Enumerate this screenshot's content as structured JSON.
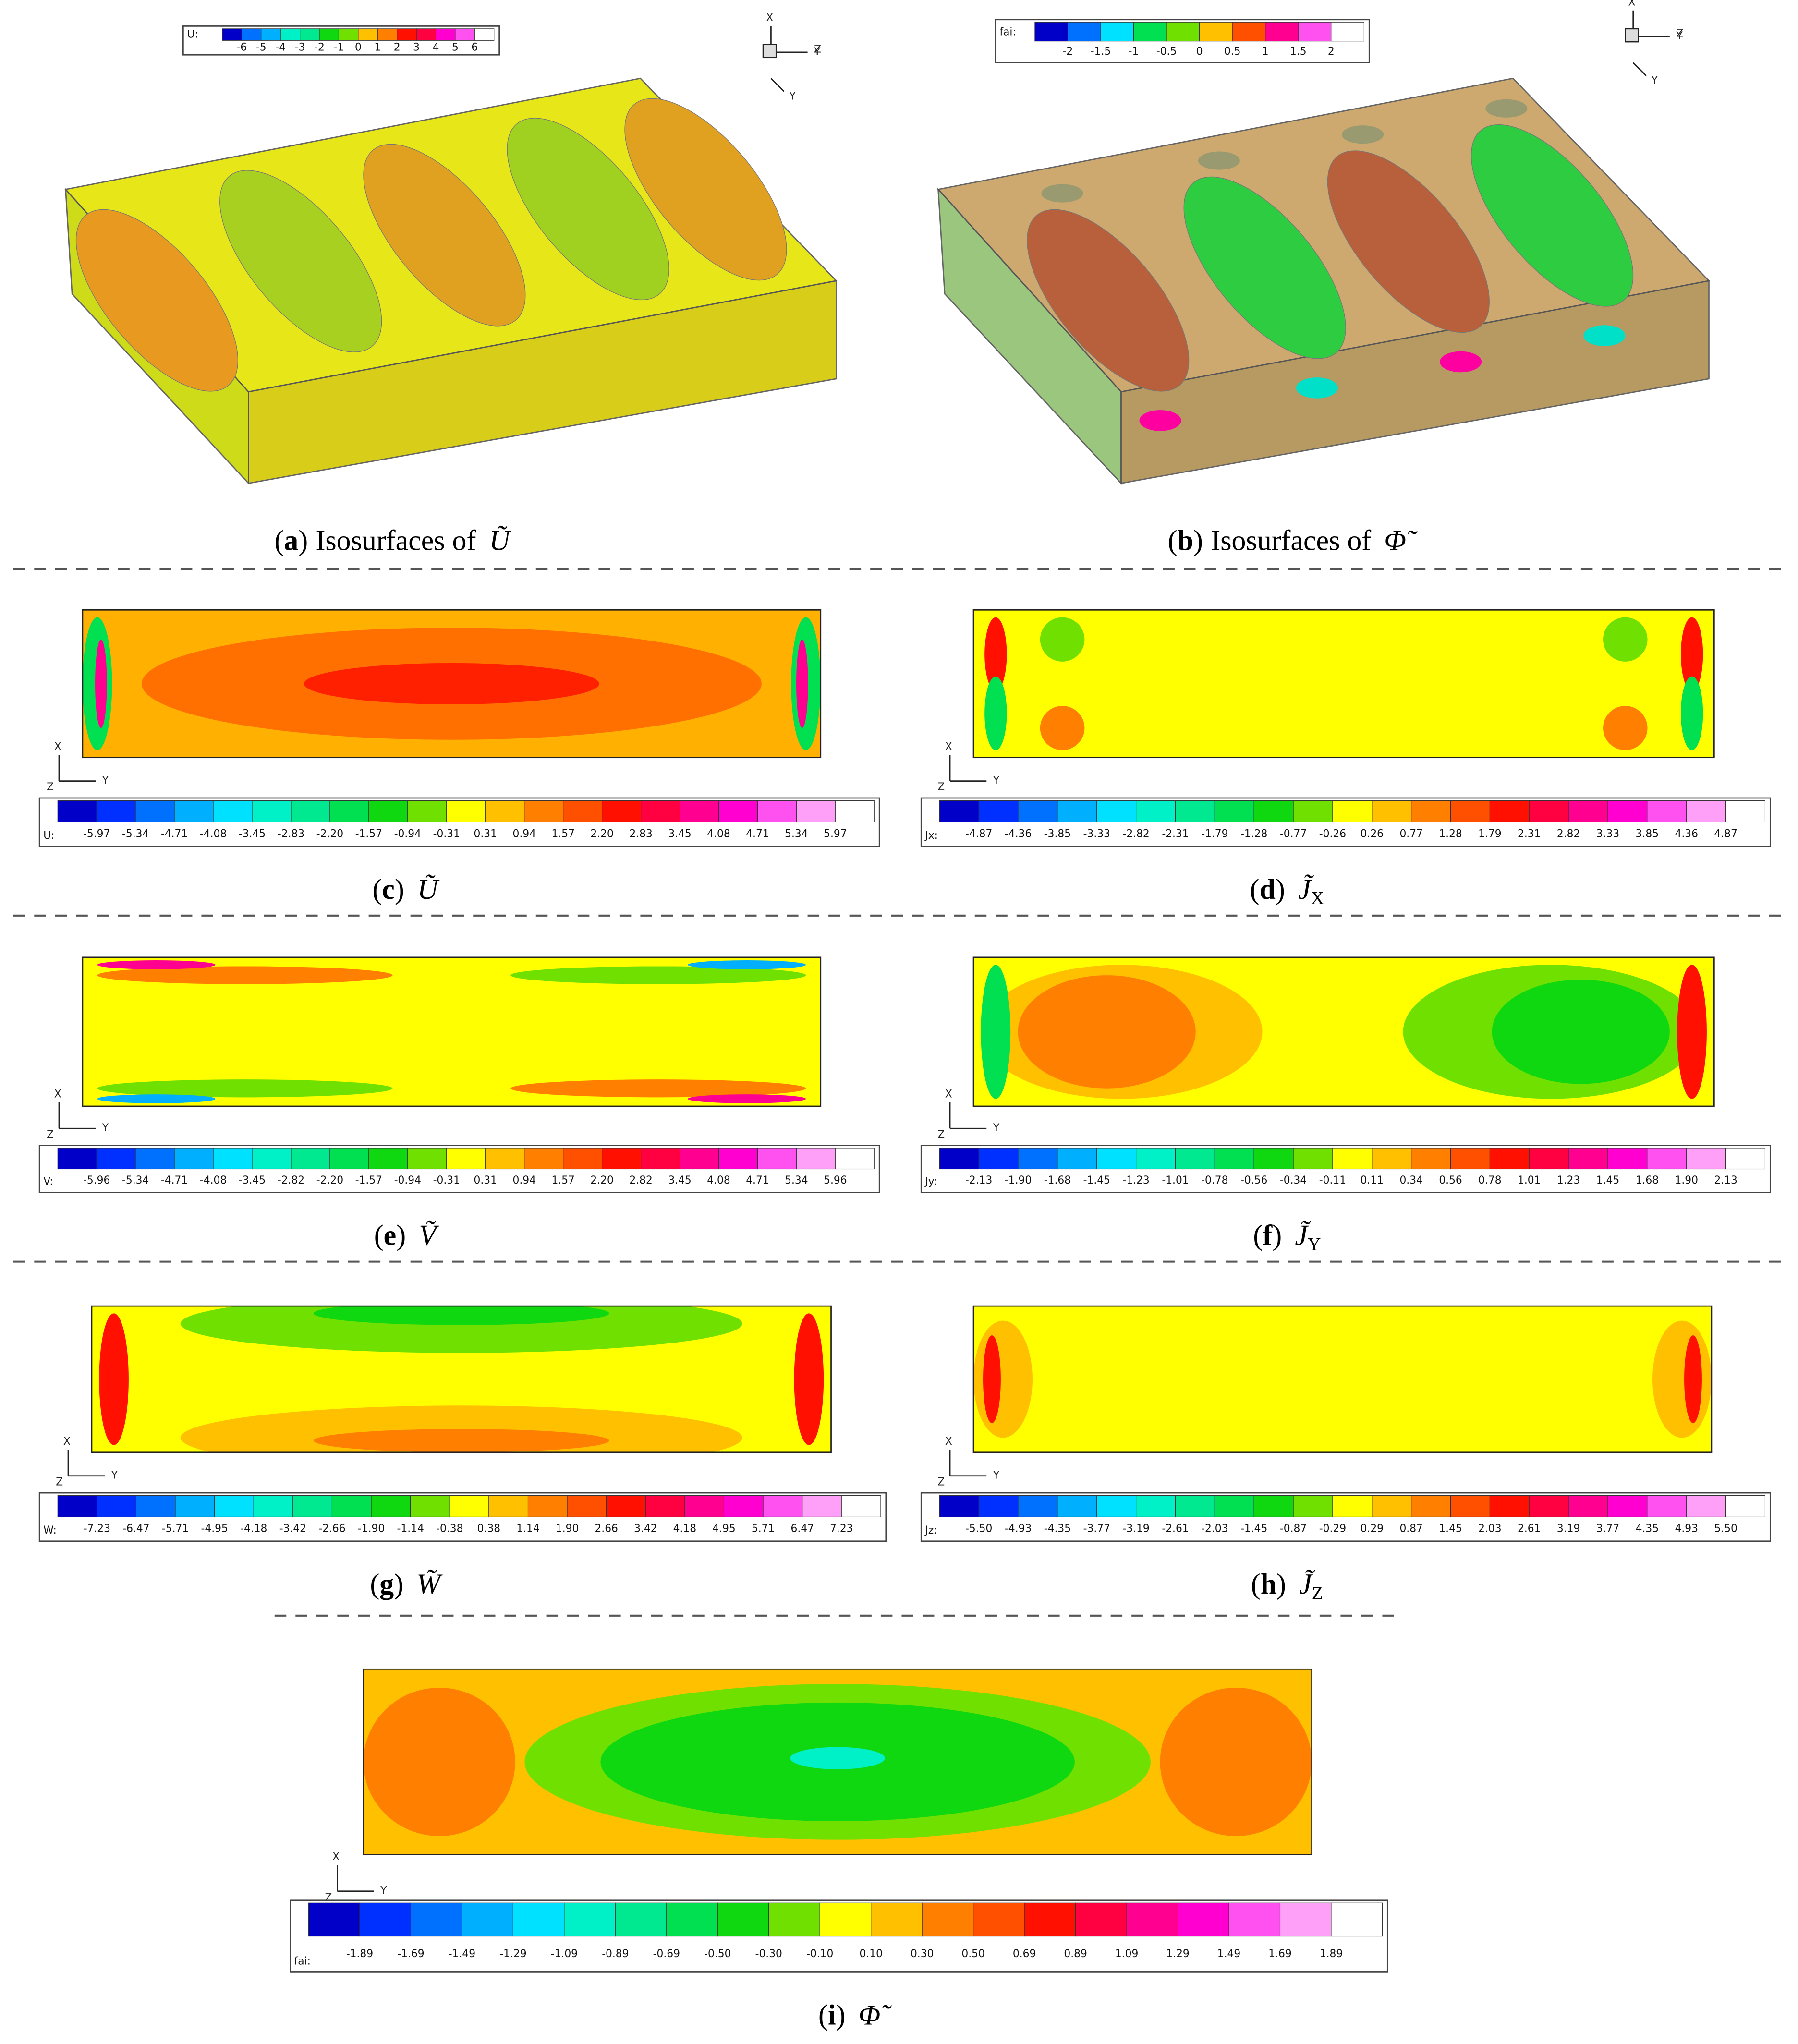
{
  "axis_labels": {
    "x": "X",
    "y": "Y",
    "z": "Z"
  },
  "panels": [
    {
      "caption": {
        "letter": "a",
        "text": "Isosurfaces of",
        "symbol": "Ũ"
      },
      "colorbar": {
        "label": "U:",
        "ticks": [
          "-6",
          "-5",
          "-4",
          "-3",
          "-2",
          "-1",
          "0",
          "1",
          "2",
          "3",
          "4",
          "5",
          "6"
        ]
      }
    },
    {
      "caption": {
        "letter": "b",
        "text": "Isosurfaces of",
        "symbol": "Φ̃"
      },
      "colorbar": {
        "label": "fai:",
        "ticks": [
          "-2",
          "-1.5",
          "-1",
          "-0.5",
          "0",
          "0.5",
          "1",
          "1.5",
          "2"
        ]
      }
    },
    {
      "caption": {
        "letter": "c",
        "symbol": "Ũ"
      },
      "colorbar": {
        "label": "U:",
        "ticks": [
          "-5.97",
          "-5.34",
          "-4.71",
          "-4.08",
          "-3.45",
          "-2.83",
          "-2.20",
          "-1.57",
          "-0.94",
          "-0.31",
          "0.31",
          "0.94",
          "1.57",
          "2.20",
          "2.83",
          "3.45",
          "4.08",
          "4.71",
          "5.34",
          "5.97"
        ]
      }
    },
    {
      "caption": {
        "letter": "d",
        "symbol": "J̃",
        "subscript": "X"
      },
      "colorbar": {
        "label": "Jx:",
        "ticks": [
          "-4.87",
          "-4.36",
          "-3.85",
          "-3.33",
          "-2.82",
          "-2.31",
          "-1.79",
          "-1.28",
          "-0.77",
          "-0.26",
          "0.26",
          "0.77",
          "1.28",
          "1.79",
          "2.31",
          "2.82",
          "3.33",
          "3.85",
          "4.36",
          "4.87"
        ]
      }
    },
    {
      "caption": {
        "letter": "e",
        "symbol": "Ṽ"
      },
      "colorbar": {
        "label": "V:",
        "ticks": [
          "-5.96",
          "-5.34",
          "-4.71",
          "-4.08",
          "-3.45",
          "-2.82",
          "-2.20",
          "-1.57",
          "-0.94",
          "-0.31",
          "0.31",
          "0.94",
          "1.57",
          "2.20",
          "2.82",
          "3.45",
          "4.08",
          "4.71",
          "5.34",
          "5.96"
        ]
      }
    },
    {
      "caption": {
        "letter": "f",
        "symbol": "J̃",
        "subscript": "Y"
      },
      "colorbar": {
        "label": "Jy:",
        "ticks": [
          "-2.13",
          "-1.90",
          "-1.68",
          "-1.45",
          "-1.23",
          "-1.01",
          "-0.78",
          "-0.56",
          "-0.34",
          "-0.11",
          "0.11",
          "0.34",
          "0.56",
          "0.78",
          "1.01",
          "1.23",
          "1.45",
          "1.68",
          "1.90",
          "2.13"
        ]
      }
    },
    {
      "caption": {
        "letter": "g",
        "symbol": "W̃"
      },
      "colorbar": {
        "label": "W:",
        "ticks": [
          "-7.23",
          "-6.47",
          "-5.71",
          "-4.95",
          "-4.18",
          "-3.42",
          "-2.66",
          "-1.90",
          "-1.14",
          "-0.38",
          "0.38",
          "1.14",
          "1.90",
          "2.66",
          "3.42",
          "4.18",
          "4.95",
          "5.71",
          "6.47",
          "7.23"
        ]
      }
    },
    {
      "caption": {
        "letter": "h",
        "symbol": "J̃",
        "subscript": "Z"
      },
      "colorbar": {
        "label": "Jz:",
        "ticks": [
          "-5.50",
          "-4.93",
          "-4.35",
          "-3.77",
          "-3.19",
          "-2.61",
          "-2.03",
          "-1.45",
          "-0.87",
          "-0.29",
          "0.29",
          "0.87",
          "1.45",
          "2.03",
          "2.61",
          "3.19",
          "3.77",
          "4.35",
          "4.93",
          "5.50"
        ]
      }
    },
    {
      "caption": {
        "letter": "i",
        "symbol": "Φ̃"
      },
      "colorbar": {
        "label": "fai:",
        "ticks": [
          "-1.89",
          "-1.69",
          "-1.49",
          "-1.29",
          "-1.09",
          "-0.89",
          "-0.69",
          "-0.50",
          "-0.30",
          "-0.10",
          "0.10",
          "0.30",
          "0.50",
          "0.69",
          "0.89",
          "1.09",
          "1.29",
          "1.49",
          "1.69",
          "1.89"
        ]
      }
    }
  ]
}
